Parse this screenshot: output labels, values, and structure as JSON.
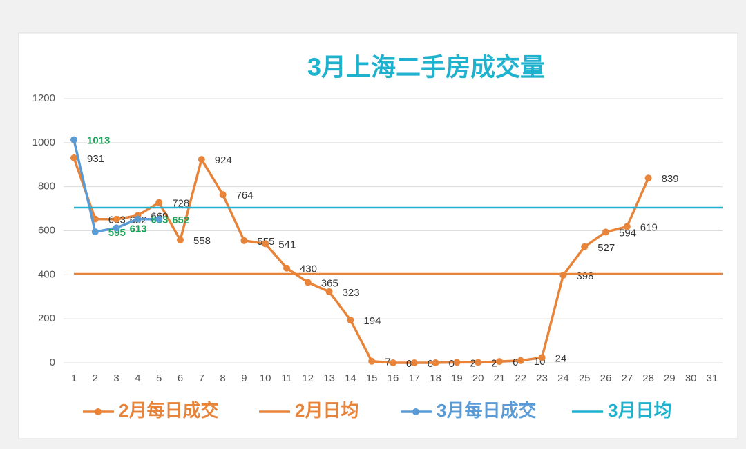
{
  "chart_data": {
    "type": "line",
    "title": "3月上海二手房成交量",
    "x": [
      1,
      2,
      3,
      4,
      5,
      6,
      7,
      8,
      9,
      10,
      11,
      12,
      13,
      14,
      15,
      16,
      17,
      18,
      19,
      20,
      21,
      22,
      23,
      24,
      25,
      26,
      27,
      28,
      29,
      30,
      31
    ],
    "xlim": [
      1,
      31
    ],
    "xticks": [
      1,
      2,
      3,
      4,
      5,
      6,
      7,
      8,
      9,
      10,
      11,
      12,
      13,
      14,
      15,
      16,
      17,
      18,
      19,
      20,
      21,
      22,
      23,
      24,
      25,
      26,
      27,
      28,
      29,
      30,
      31
    ],
    "ylim": [
      0,
      1200
    ],
    "yticks": [
      0,
      200,
      400,
      600,
      800,
      1000,
      1200
    ],
    "grid": true,
    "legend": "bottom",
    "series": [
      {
        "name": "2月每日成交",
        "color": "#e8843a",
        "label_color": "#333333",
        "values": [
          931,
          653,
          652,
          669,
          728,
          558,
          924,
          764,
          555,
          541,
          430,
          365,
          323,
          194,
          7,
          0,
          0,
          0,
          2,
          2,
          6,
          10,
          24,
          398,
          527,
          594,
          619,
          839,
          null,
          null,
          null
        ]
      },
      {
        "name": "2月日均",
        "color": "#e8843a",
        "value": 404
      },
      {
        "name": "3月每日成交",
        "color": "#5b9bd5",
        "label_color": "#1aa35a",
        "values": [
          1013,
          595,
          613,
          653,
          652,
          null,
          null,
          null,
          null,
          null,
          null,
          null,
          null,
          null,
          null,
          null,
          null,
          null,
          null,
          null,
          null,
          null,
          null,
          null,
          null,
          null,
          null,
          null,
          null,
          null,
          null
        ]
      },
      {
        "name": "3月日均",
        "color": "#1fb2cf",
        "value": 705
      }
    ]
  }
}
